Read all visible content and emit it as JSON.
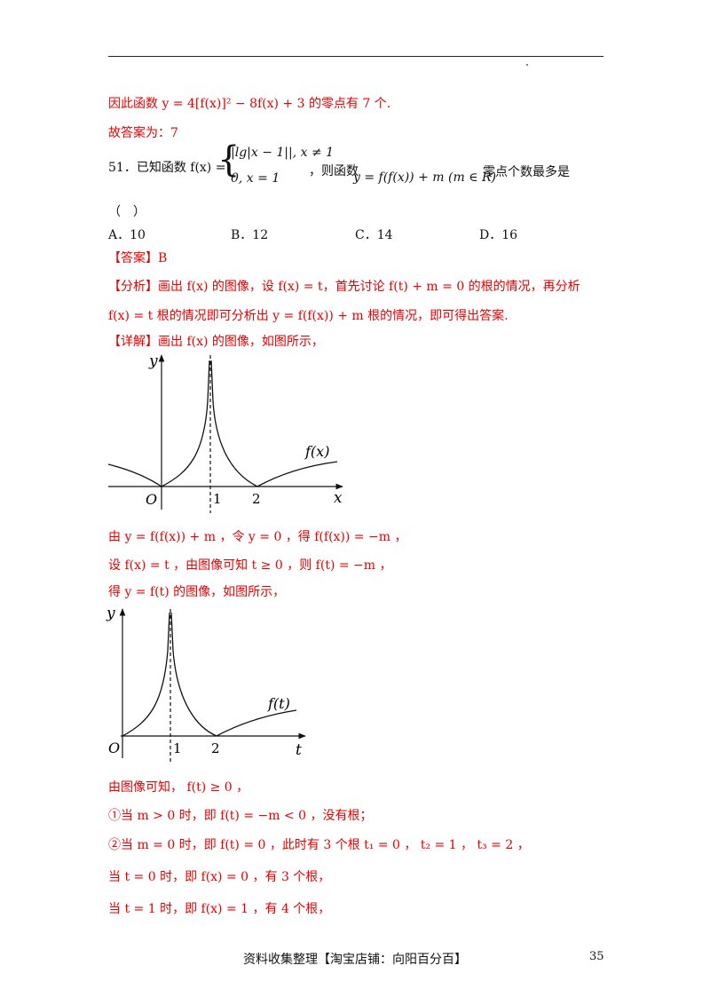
{
  "lines": {
    "l1": "因此函数 y = 4[f(x)]² − 8f(x) + 3 的零点有 7 个.",
    "l2": "故答案为：7",
    "q_prefix": "51．已知函数 f(x) =",
    "q_case1": "|lg|x − 1||, x ≠ 1",
    "q_case2": "0, x = 1",
    "q_mid": "，则函数",
    "q_func": "y = f(f(x)) + m (m ∈ R)",
    "q_suffix": "零点个数最多是",
    "q_paren": "（　）",
    "ans": "【答案】B",
    "an1": "【分析】画出 f(x) 的图像，设 f(x) = t，首先讨论 f(t) + m = 0 的根的情况，再分析",
    "an2": "f(x) = t 根的情况即可分析出 y = f(f(x)) + m 根的情况，即可得出答案.",
    "det": "【详解】画出 f(x) 的图像，如图所示，",
    "s1": "由 y = f(f(x)) + m ，令 y = 0 ，得 f(f(x)) = −m ，",
    "s2": "设 f(x) = t ，由图像可知 t ≥ 0 ，则 f(t) = −m ，",
    "s3": "得 y = f(t) 的图像，如图所示，",
    "s4": "由图像可知， f(t) ≥ 0 ，",
    "s5": "①当 m > 0 时，即 f(t) = −m < 0 ，没有根；",
    "s6": "②当 m = 0 时，即 f(t) = 0 ，此时有 3 个根 t₁ = 0 ， t₂ = 1 ， t₃ = 2 ，",
    "s7": "当 t = 0 时，即 f(x) = 0 ，有 3 个根，",
    "s8": "当 t = 1 时，即 f(x) = 1 ，有 4 个根，"
  },
  "options": {
    "a": "A．10",
    "b": "B．12",
    "c": "C．14",
    "d": "D．16"
  },
  "graph1": {
    "ylabel": "y",
    "xlabel": "x",
    "origin": "O",
    "tick1": "1",
    "tick2": "2",
    "curve_label": "f(x)"
  },
  "graph2": {
    "ylabel": "y",
    "xlabel": "t",
    "origin": "O",
    "tick1": "1",
    "tick2": "2",
    "curve_label": "f(t)"
  },
  "footer": "资料收集整理【淘宝店铺：向阳百分百】",
  "page_number": "35",
  "colors": {
    "answer_text": "#e60000",
    "body_text": "#111111"
  }
}
